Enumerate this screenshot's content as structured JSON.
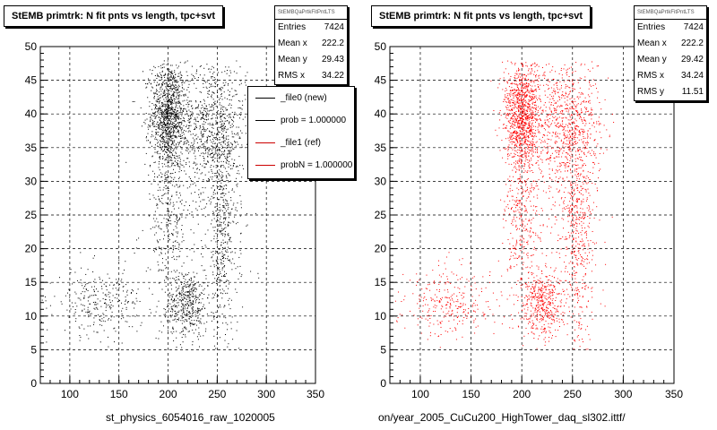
{
  "panels": [
    {
      "title": "StEMB primtrk: N fit pnts vs length, tpc+svt",
      "stats": {
        "name": "StEMBQaPrtkFitPntLTS",
        "rows": [
          {
            "label": "Entries",
            "value": "7424"
          },
          {
            "label": "Mean x",
            "value": "222.2"
          },
          {
            "label": "Mean y",
            "value": "29.43"
          },
          {
            "label": "RMS x",
            "value": "34.22"
          }
        ]
      },
      "legend": [
        {
          "label": "_file0 (new)",
          "color": "#000000"
        },
        {
          "label": "prob = 1.000000",
          "color": "#000000"
        },
        {
          "label": "_file1 (ref)",
          "color": "#cc0000"
        },
        {
          "label": "probN = 1.000000",
          "color": "#cc0000"
        }
      ],
      "filename": "st_physics_6054016_raw_1020005",
      "marker_color": "#000000"
    },
    {
      "title": "StEMB primtrk: N fit pnts vs length, tpc+svt",
      "stats": {
        "name": "StEMBQaPrtkFitPntLTS",
        "rows": [
          {
            "label": "Entries",
            "value": "7424"
          },
          {
            "label": "Mean x",
            "value": "222.2"
          },
          {
            "label": "Mean y",
            "value": "29.42"
          },
          {
            "label": "RMS x",
            "value": "34.24"
          },
          {
            "label": "RMS y",
            "value": "11.51"
          }
        ]
      },
      "filename": "on/year_2005_CuCu200_HighTower_daq_sl302.ittf/",
      "marker_color": "#ff0000"
    }
  ],
  "chart_data": [
    {
      "type": "scatter",
      "title": "StEMB primtrk: N fit pnts vs length, tpc+svt",
      "xlabel": "st_physics_6054016_raw_1020005",
      "ylabel": "",
      "xlim": [
        70,
        350
      ],
      "ylim": [
        0,
        50
      ],
      "xticks": [
        100,
        150,
        200,
        250,
        300,
        350
      ],
      "yticks": [
        0,
        5,
        10,
        15,
        20,
        25,
        30,
        35,
        40,
        45,
        50
      ],
      "grid": true,
      "legend_position": "top-right",
      "entries": 7424,
      "mean_x": 222.2,
      "mean_y": 29.43,
      "rms_x": 34.22,
      "color": "#000000",
      "clusters": [
        {
          "cx": 200,
          "cy": 40,
          "sx": 9,
          "sy": 4,
          "weight": 0.3
        },
        {
          "cx": 245,
          "cy": 38,
          "sx": 17,
          "sy": 5,
          "weight": 0.22
        },
        {
          "cx": 220,
          "cy": 12,
          "sx": 10,
          "sy": 2.5,
          "weight": 0.12
        },
        {
          "cx": 255,
          "cy": 22,
          "sx": 8,
          "sy": 8,
          "weight": 0.12
        },
        {
          "cx": 200,
          "cy": 25,
          "sx": 9,
          "sy": 8,
          "weight": 0.1
        },
        {
          "cx": 130,
          "cy": 12,
          "sx": 22,
          "sy": 2.5,
          "weight": 0.08
        },
        {
          "cx": 230,
          "cy": 30,
          "sx": 30,
          "sy": 12,
          "weight": 0.06
        }
      ]
    },
    {
      "type": "scatter",
      "title": "StEMB primtrk: N fit pnts vs length, tpc+svt",
      "xlabel": "on/year_2005_CuCu200_HighTower_daq_sl302.ittf/",
      "ylabel": "",
      "xlim": [
        70,
        350
      ],
      "ylim": [
        0,
        50
      ],
      "xticks": [
        100,
        150,
        200,
        250,
        300,
        350
      ],
      "yticks": [
        0,
        5,
        10,
        15,
        20,
        25,
        30,
        35,
        40,
        45,
        50
      ],
      "grid": true,
      "entries": 7424,
      "mean_x": 222.2,
      "mean_y": 29.42,
      "rms_x": 34.24,
      "rms_y": 11.51,
      "color": "#ff0000",
      "clusters": [
        {
          "cx": 200,
          "cy": 40,
          "sx": 9,
          "sy": 4,
          "weight": 0.3
        },
        {
          "cx": 245,
          "cy": 38,
          "sx": 17,
          "sy": 5,
          "weight": 0.22
        },
        {
          "cx": 220,
          "cy": 12,
          "sx": 10,
          "sy": 2.5,
          "weight": 0.12
        },
        {
          "cx": 255,
          "cy": 22,
          "sx": 8,
          "sy": 8,
          "weight": 0.12
        },
        {
          "cx": 200,
          "cy": 25,
          "sx": 9,
          "sy": 8,
          "weight": 0.1
        },
        {
          "cx": 130,
          "cy": 12,
          "sx": 22,
          "sy": 2.5,
          "weight": 0.08
        },
        {
          "cx": 230,
          "cy": 30,
          "sx": 30,
          "sy": 12,
          "weight": 0.06
        }
      ]
    }
  ]
}
